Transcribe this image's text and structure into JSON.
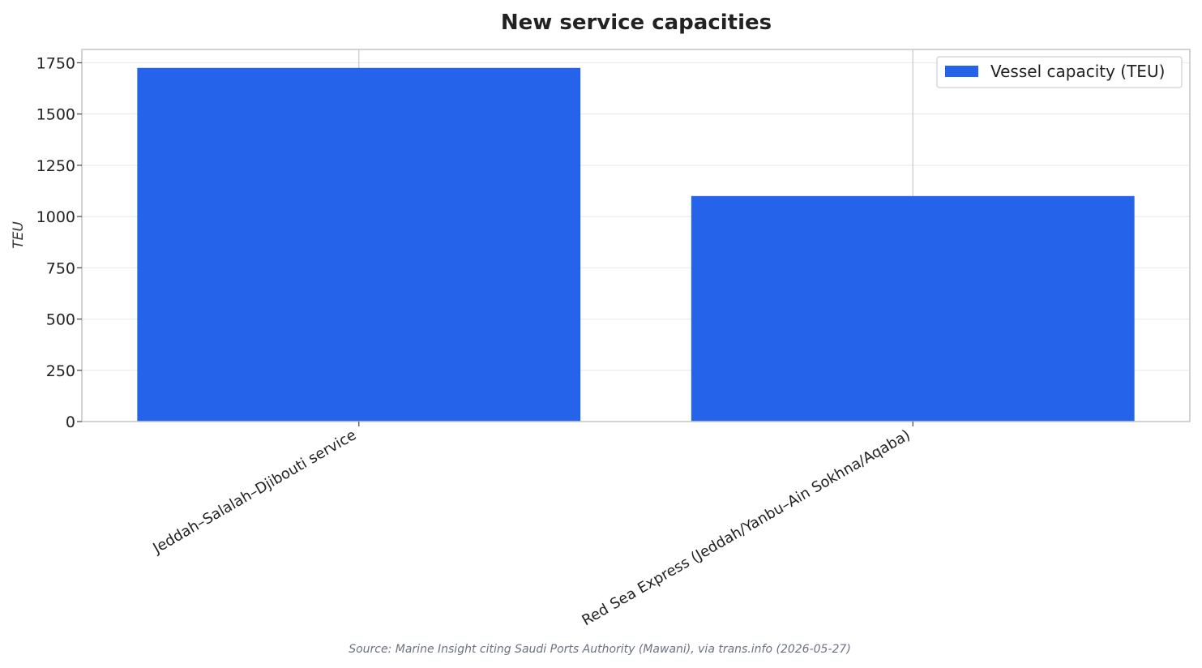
{
  "chart_data": {
    "type": "bar",
    "title": "New service capacities",
    "xlabel": "",
    "ylabel": "TEU",
    "categories": [
      "Jeddah–Salalah–Djibouti service",
      "Red Sea Express (Jeddah/Yanbu–Ain Sokhna/Aqaba)"
    ],
    "series": [
      {
        "name": "Vessel capacity (TEU)",
        "values": [
          1725,
          1100
        ],
        "color": "#2563eb"
      }
    ],
    "ylim": [
      0,
      1815
    ],
    "yticks": [
      0,
      250,
      500,
      750,
      1000,
      1250,
      1500,
      1750
    ],
    "grid": true,
    "legend_position": "top-right"
  },
  "source_note": "Source: Marine Insight citing Saudi Ports Authority (Mawani), via trans.info (2026-05-27)"
}
